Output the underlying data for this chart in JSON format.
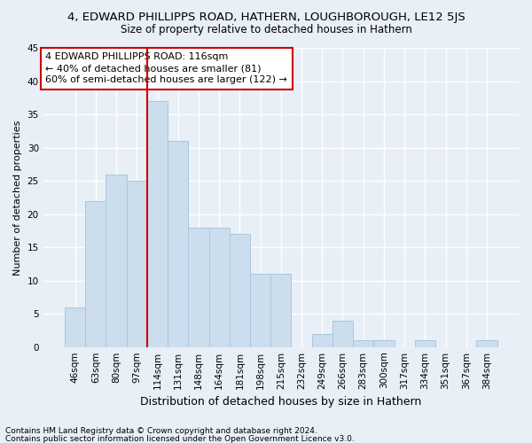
{
  "title": "4, EDWARD PHILLIPPS ROAD, HATHERN, LOUGHBOROUGH, LE12 5JS",
  "subtitle": "Size of property relative to detached houses in Hathern",
  "xlabel": "Distribution of detached houses by size in Hathern",
  "ylabel": "Number of detached properties",
  "categories": [
    "46sqm",
    "63sqm",
    "80sqm",
    "97sqm",
    "114sqm",
    "131sqm",
    "148sqm",
    "164sqm",
    "181sqm",
    "198sqm",
    "215sqm",
    "232sqm",
    "249sqm",
    "266sqm",
    "283sqm",
    "300sqm",
    "317sqm",
    "334sqm",
    "351sqm",
    "367sqm",
    "384sqm"
  ],
  "values": [
    6,
    22,
    26,
    25,
    37,
    31,
    18,
    18,
    17,
    11,
    11,
    0,
    2,
    4,
    1,
    1,
    0,
    1,
    0,
    0,
    1
  ],
  "bar_color": "#ccdded",
  "bar_edge_color": "#a8c8e0",
  "highlight_bar_index": 4,
  "highlight_line_color": "#cc0000",
  "ylim": [
    0,
    45
  ],
  "yticks": [
    0,
    5,
    10,
    15,
    20,
    25,
    30,
    35,
    40,
    45
  ],
  "annotation_line1": "4 EDWARD PHILLIPPS ROAD: 116sqm",
  "annotation_line2": "← 40% of detached houses are smaller (81)",
  "annotation_line3": "60% of semi-detached houses are larger (122) →",
  "annotation_box_color": "#cc0000",
  "footer_line1": "Contains HM Land Registry data © Crown copyright and database right 2024.",
  "footer_line2": "Contains public sector information licensed under the Open Government Licence v3.0.",
  "bg_color": "#e8eff7",
  "fig_bg_color": "#e8eff7",
  "grid_color": "#ffffff",
  "title_fontsize": 9.5,
  "subtitle_fontsize": 8.5,
  "xlabel_fontsize": 9,
  "ylabel_fontsize": 8,
  "tick_fontsize": 7.5,
  "annotation_fontsize": 8,
  "footer_fontsize": 6.5
}
